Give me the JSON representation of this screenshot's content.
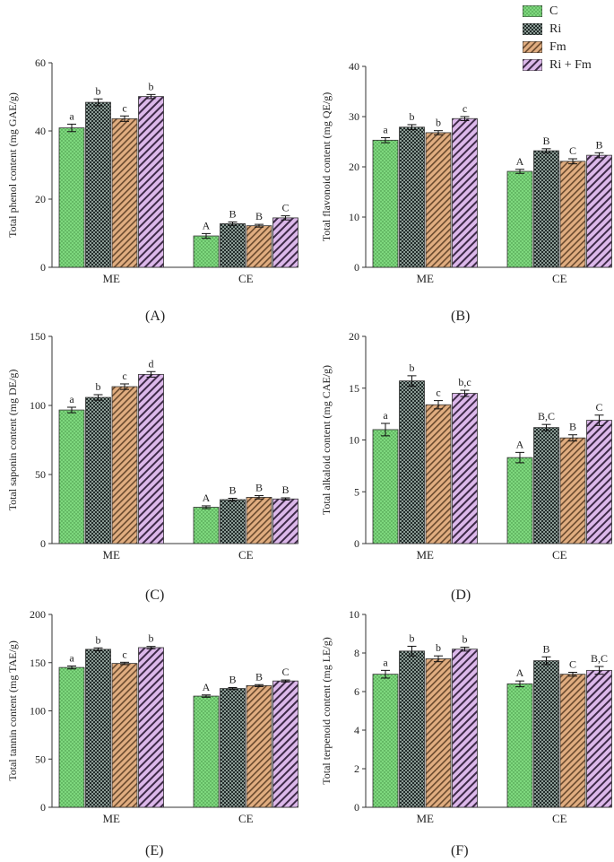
{
  "legend": [
    {
      "name": "C",
      "color": "#7ed87e",
      "pattern": "dots"
    },
    {
      "name": "Ri",
      "color": "#3a4a46",
      "pattern": "checker"
    },
    {
      "name": "Fm",
      "color": "#d49868",
      "pattern": "diag"
    },
    {
      "name": "Ri + Fm",
      "color": "#c9a0d8",
      "pattern": "diag"
    }
  ],
  "chart_data": [
    {
      "type": "bar",
      "panel": "(A)",
      "categories": [
        "ME",
        "CE"
      ],
      "ylabel": "Total phenol content (mg GAE/g)",
      "ylim": [
        0,
        60
      ],
      "yticks": [
        0,
        20,
        40,
        60
      ],
      "series": [
        {
          "name": "C",
          "values": [
            40.9,
            9.2
          ],
          "errors": [
            1.1,
            0.7
          ],
          "letters": [
            "a",
            "A"
          ]
        },
        {
          "name": "Ri",
          "values": [
            48.4,
            12.8
          ],
          "errors": [
            1.0,
            0.5
          ],
          "letters": [
            "b",
            "B"
          ]
        },
        {
          "name": "Fm",
          "values": [
            43.6,
            12.2
          ],
          "errors": [
            0.8,
            0.4
          ],
          "letters": [
            "c",
            "B"
          ]
        },
        {
          "name": "Ri + Fm",
          "values": [
            50.1,
            14.5
          ],
          "errors": [
            0.6,
            0.6
          ],
          "letters": [
            "b",
            "C"
          ]
        }
      ]
    },
    {
      "type": "bar",
      "panel": "(B)",
      "categories": [
        "ME",
        "CE"
      ],
      "ylabel": "Total flavonoid content (mg QE/g)",
      "ylim": [
        0,
        40
      ],
      "yticks": [
        0,
        10,
        20,
        30,
        40
      ],
      "series": [
        {
          "name": "C",
          "values": [
            25.3,
            19.1
          ],
          "errors": [
            0.5,
            0.4
          ],
          "letters": [
            "a",
            "A"
          ]
        },
        {
          "name": "Ri",
          "values": [
            27.9,
            23.2
          ],
          "errors": [
            0.5,
            0.4
          ],
          "letters": [
            "b",
            "B"
          ]
        },
        {
          "name": "Fm",
          "values": [
            26.8,
            21.1
          ],
          "errors": [
            0.4,
            0.5
          ],
          "letters": [
            "b",
            "C"
          ]
        },
        {
          "name": "Ri + Fm",
          "values": [
            29.6,
            22.3
          ],
          "errors": [
            0.4,
            0.5
          ],
          "letters": [
            "c",
            "B"
          ]
        }
      ]
    },
    {
      "type": "bar",
      "panel": "(C)",
      "categories": [
        "ME",
        "CE"
      ],
      "ylabel": "Total saponin content (mg DE/g)",
      "ylim": [
        0,
        150
      ],
      "yticks": [
        0,
        50,
        100,
        150
      ],
      "series": [
        {
          "name": "C",
          "values": [
            96.7,
            26.3
          ],
          "errors": [
            2.0,
            1.0
          ],
          "letters": [
            "a",
            "A"
          ]
        },
        {
          "name": "Ri",
          "values": [
            105.8,
            31.8
          ],
          "errors": [
            2.0,
            1.0
          ],
          "letters": [
            "b",
            "B"
          ]
        },
        {
          "name": "Fm",
          "values": [
            113.6,
            33.5
          ],
          "errors": [
            2.0,
            1.2
          ],
          "letters": [
            "c",
            "B"
          ]
        },
        {
          "name": "Ri + Fm",
          "values": [
            122.5,
            32.3
          ],
          "errors": [
            2.0,
            0.8
          ],
          "letters": [
            "d",
            "B"
          ]
        }
      ]
    },
    {
      "type": "bar",
      "panel": "(D)",
      "categories": [
        "ME",
        "CE"
      ],
      "ylabel": "Total alkaloid content (mg CAE/g)",
      "ylim": [
        0,
        20
      ],
      "yticks": [
        0,
        5,
        10,
        15,
        20
      ],
      "series": [
        {
          "name": "C",
          "values": [
            11.0,
            8.3
          ],
          "errors": [
            0.6,
            0.5
          ],
          "letters": [
            "a",
            "A"
          ]
        },
        {
          "name": "Ri",
          "values": [
            15.7,
            11.2
          ],
          "errors": [
            0.5,
            0.3
          ],
          "letters": [
            "b",
            "B,C"
          ]
        },
        {
          "name": "Fm",
          "values": [
            13.4,
            10.2
          ],
          "errors": [
            0.4,
            0.3
          ],
          "letters": [
            "c",
            "B"
          ]
        },
        {
          "name": "Ri + Fm",
          "values": [
            14.5,
            11.9
          ],
          "errors": [
            0.3,
            0.5
          ],
          "letters": [
            "b,c",
            "C"
          ]
        }
      ]
    },
    {
      "type": "bar",
      "panel": "(E)",
      "categories": [
        "ME",
        "CE"
      ],
      "ylabel": "Total tannin content (mg TAE/g)",
      "ylim": [
        0,
        200
      ],
      "yticks": [
        0,
        50,
        100,
        150,
        200
      ],
      "series": [
        {
          "name": "C",
          "values": [
            145.0,
            115.3
          ],
          "errors": [
            1.5,
            1.2
          ],
          "letters": [
            "a",
            "A"
          ]
        },
        {
          "name": "Ri",
          "values": [
            163.8,
            123.2
          ],
          "errors": [
            1.5,
            1.0
          ],
          "letters": [
            "b",
            "B"
          ]
        },
        {
          "name": "Fm",
          "values": [
            149.2,
            126.2
          ],
          "errors": [
            1.2,
            1.0
          ],
          "letters": [
            "c",
            "B"
          ]
        },
        {
          "name": "Ri + Fm",
          "values": [
            165.6,
            131.0
          ],
          "errors": [
            1.2,
            1.0
          ],
          "letters": [
            "b",
            "C"
          ]
        }
      ]
    },
    {
      "type": "bar",
      "panel": "(F)",
      "categories": [
        "ME",
        "CE"
      ],
      "ylabel": "Total terpenoid content (mg LE/g)",
      "ylim": [
        0,
        10
      ],
      "yticks": [
        0,
        2,
        4,
        6,
        8,
        10
      ],
      "series": [
        {
          "name": "C",
          "values": [
            6.9,
            6.4
          ],
          "errors": [
            0.2,
            0.15
          ],
          "letters": [
            "a",
            "A"
          ]
        },
        {
          "name": "Ri",
          "values": [
            8.1,
            7.6
          ],
          "errors": [
            0.25,
            0.2
          ],
          "letters": [
            "b",
            "B"
          ]
        },
        {
          "name": "Fm",
          "values": [
            7.7,
            6.9
          ],
          "errors": [
            0.15,
            0.1
          ],
          "letters": [
            "b",
            "C"
          ]
        },
        {
          "name": "Ri + Fm",
          "values": [
            8.2,
            7.1
          ],
          "errors": [
            0.1,
            0.2
          ],
          "letters": [
            "b",
            "B,C"
          ]
        }
      ]
    }
  ]
}
